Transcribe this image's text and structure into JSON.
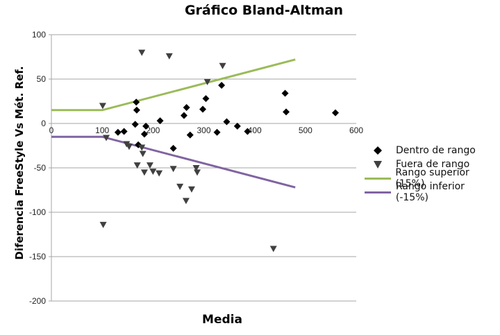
{
  "chart_data": {
    "type": "scatter",
    "title": "Gráfico Bland-Altman",
    "xlabel": "Media",
    "ylabel": "Diferencia FreeStyle Vs Mét. Ref.",
    "xlim": [
      0,
      600
    ],
    "ylim": [
      -200,
      100
    ],
    "x_ticks": [
      0,
      100,
      200,
      300,
      400,
      500,
      600
    ],
    "y_ticks": [
      100,
      50,
      0,
      -50,
      -100,
      -150,
      -200
    ],
    "grid": "horizontal",
    "legend_position": "right",
    "series": [
      {
        "name": "Dentro de rango",
        "type": "scatter",
        "marker": "diamond",
        "color": "#000000",
        "points": [
          [
            167,
            24
          ],
          [
            168,
            15
          ],
          [
            165,
            -1
          ],
          [
            186,
            -3
          ],
          [
            214,
            3
          ],
          [
            131,
            -10
          ],
          [
            143,
            -9
          ],
          [
            183,
            -12
          ],
          [
            171,
            -24
          ],
          [
            240,
            -28
          ],
          [
            273,
            -13
          ],
          [
            335,
            43
          ],
          [
            304,
            28
          ],
          [
            266,
            18
          ],
          [
            298,
            16
          ],
          [
            261,
            9
          ],
          [
            345,
            2
          ],
          [
            366,
            -3
          ],
          [
            326,
            -10
          ],
          [
            386,
            -9
          ],
          [
            460,
            34
          ],
          [
            462,
            13
          ],
          [
            559,
            12
          ]
        ]
      },
      {
        "name": "Fuera de rango",
        "type": "scatter",
        "marker": "triangle-down",
        "color": "#404040",
        "points": [
          [
            178,
            80
          ],
          [
            232,
            76
          ],
          [
            337,
            65
          ],
          [
            307,
            47
          ],
          [
            101,
            20
          ],
          [
            108,
            -16
          ],
          [
            148,
            -23
          ],
          [
            153,
            -26
          ],
          [
            178,
            -27
          ],
          [
            180,
            -34
          ],
          [
            169,
            -47
          ],
          [
            183,
            -55
          ],
          [
            194,
            -47
          ],
          [
            200,
            -54
          ],
          [
            212,
            -56
          ],
          [
            240,
            -51
          ],
          [
            253,
            -71
          ],
          [
            265,
            -87
          ],
          [
            276,
            -74
          ],
          [
            285,
            -50
          ],
          [
            287,
            -55
          ],
          [
            102,
            -114
          ],
          [
            437,
            -141
          ]
        ]
      },
      {
        "name": "Rango superior (15%)",
        "type": "line",
        "color": "#9BBB59",
        "points": [
          [
            0,
            15
          ],
          [
            100,
            15
          ],
          [
            480,
            72
          ]
        ]
      },
      {
        "name": "Rango inferior (-15%)",
        "type": "line",
        "color": "#8064A2",
        "points": [
          [
            0,
            -15
          ],
          [
            100,
            -15
          ],
          [
            480,
            -72
          ]
        ]
      }
    ]
  },
  "legend": {
    "items": [
      {
        "label": "Dentro de rango"
      },
      {
        "label": "Fuera de rango"
      },
      {
        "label": "Rango superior (15%)"
      },
      {
        "label": "Rango inferior (-15%)"
      }
    ]
  }
}
